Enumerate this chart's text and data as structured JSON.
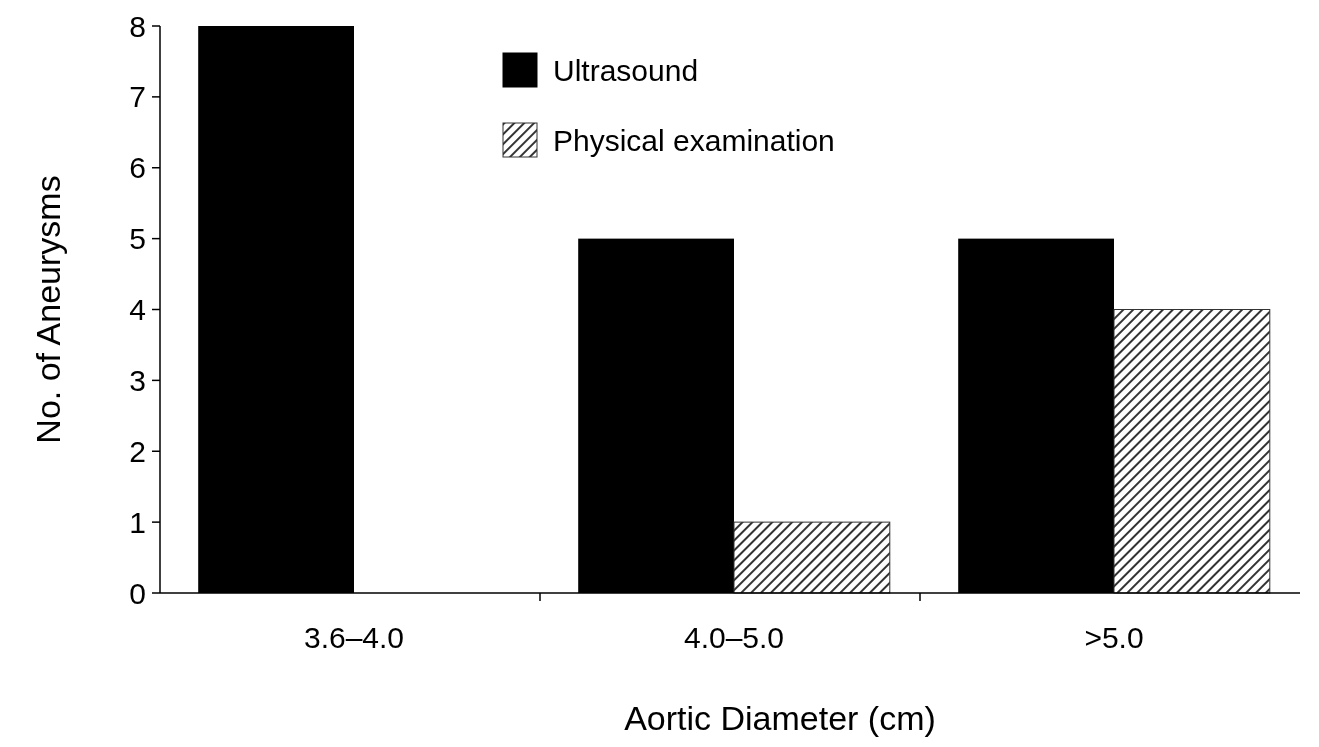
{
  "chart_data": {
    "type": "bar",
    "xlabel": "Aortic Diameter (cm)",
    "ylabel": "No. of Aneurysms",
    "categories": [
      "3.6–4.0",
      "4.0–5.0",
      ">5.0"
    ],
    "series": [
      {
        "name": "Ultrasound",
        "color": "#000000",
        "values": [
          8,
          5,
          5
        ]
      },
      {
        "name": "Physical examination",
        "color": "#333333",
        "values": [
          0,
          1,
          4
        ]
      }
    ],
    "ylim": [
      0,
      8
    ],
    "yticks": [
      0,
      1,
      2,
      3,
      4,
      5,
      6,
      7,
      8
    ],
    "grid": false,
    "legend": "top"
  }
}
